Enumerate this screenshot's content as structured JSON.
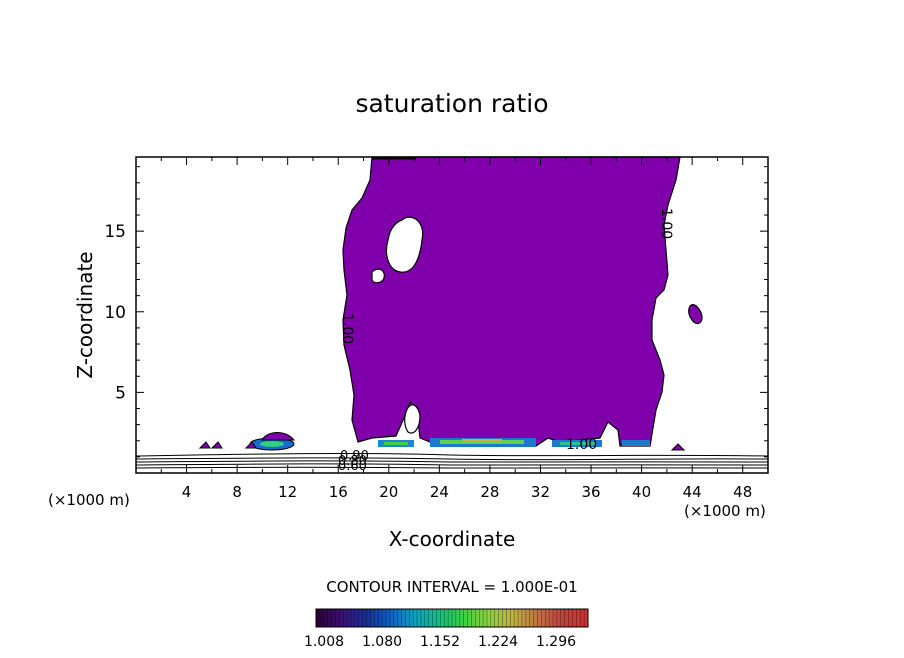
{
  "chart_data": {
    "type": "contour",
    "title": "saturation ratio",
    "xlabel": "X-coordinate",
    "ylabel": "Z-coordinate",
    "x_unit": "(×1000 m)",
    "xlim": [
      0,
      50
    ],
    "ylim": [
      0,
      19.6
    ],
    "x_ticks": [
      4,
      8,
      12,
      16,
      20,
      24,
      28,
      32,
      36,
      40,
      44,
      48
    ],
    "y_ticks": [
      5,
      10,
      15
    ],
    "contour_interval_text": "CONTOUR INTERVAL = 1.000E-01",
    "contour_labels": [
      "1.00",
      "1.00",
      "1.00",
      "0.90",
      "0.80",
      "0.60"
    ],
    "colorbar": {
      "ticks": [
        "1.008",
        "1.080",
        "1.152",
        "1.224",
        "1.296"
      ],
      "colors": [
        "#2a0033",
        "#3a1070",
        "#1a2a9a",
        "#1060c0",
        "#10a0c0",
        "#10c080",
        "#40d040",
        "#90d040",
        "#c0b040",
        "#c07040",
        "#c04040",
        "#d03030"
      ]
    },
    "cloud_color": "#7f00aa",
    "series": []
  }
}
